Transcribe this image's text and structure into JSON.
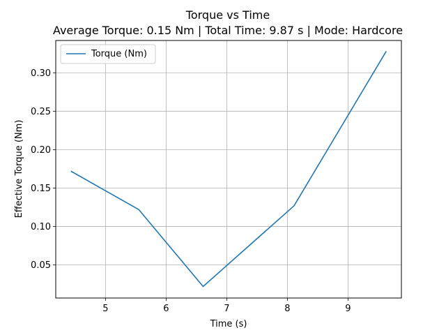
{
  "chart_data": {
    "type": "line",
    "title": "Torque vs Time",
    "subtitle": "Average Torque: 0.15 Nm | Total Time: 9.87 s | Mode: Hardcore",
    "xlabel": "Time (s)",
    "ylabel": "Effective Torque (Nm)",
    "xlim": [
      4.18,
      9.88
    ],
    "ylim": [
      0.007,
      0.342
    ],
    "xticks": [
      5,
      6,
      7,
      8,
      9
    ],
    "xtick_labels": [
      "5",
      "6",
      "7",
      "8",
      "9"
    ],
    "yticks": [
      0.05,
      0.1,
      0.15,
      0.2,
      0.25,
      0.3
    ],
    "ytick_labels": [
      "0.05",
      "0.10",
      "0.15",
      "0.20",
      "0.25",
      "0.30"
    ],
    "grid": true,
    "legend_position": "top-left",
    "series": [
      {
        "name": "Torque (Nm)",
        "color": "#1f77b4",
        "x": [
          4.43,
          5.55,
          6.61,
          8.11,
          9.63
        ],
        "y": [
          0.172,
          0.122,
          0.022,
          0.127,
          0.328
        ]
      }
    ]
  }
}
